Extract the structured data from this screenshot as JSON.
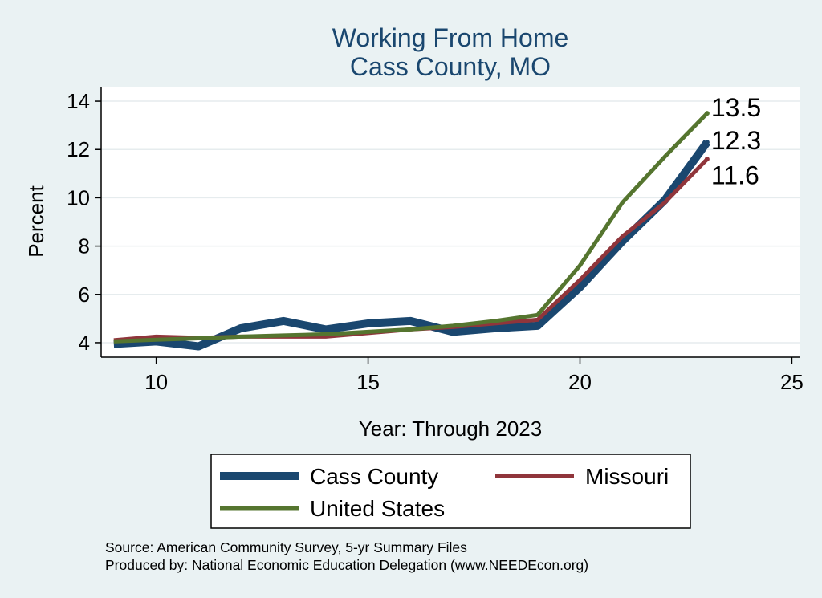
{
  "chart_data": {
    "type": "line",
    "title": "Working From Home",
    "subtitle": "Cass County, MO",
    "xlabel": "Year: Through 2023",
    "ylabel": "Percent",
    "xlim": [
      8.7,
      25.2
    ],
    "ylim": [
      3.4,
      14.6
    ],
    "xticks": [
      10,
      15,
      20,
      25
    ],
    "yticks": [
      4,
      6,
      8,
      10,
      12,
      14
    ],
    "grid": true,
    "x": [
      9,
      10,
      11,
      12,
      13,
      14,
      15,
      16,
      17,
      18,
      19,
      20,
      21,
      22,
      23
    ],
    "series": [
      {
        "name": "Cass County",
        "color": "#1a476f",
        "values": [
          3.95,
          4.05,
          3.85,
          4.6,
          4.9,
          4.55,
          4.8,
          4.9,
          4.45,
          4.6,
          4.7,
          6.3,
          8.2,
          9.9,
          12.3
        ],
        "end_label": "12.3"
      },
      {
        "name": "Missouri",
        "color": "#90353b",
        "values": [
          4.1,
          4.25,
          4.2,
          4.25,
          4.25,
          4.25,
          4.4,
          4.55,
          4.65,
          4.8,
          4.95,
          6.6,
          8.4,
          9.8,
          11.6
        ],
        "end_label": "11.6"
      },
      {
        "name": "United States",
        "color": "#55752f",
        "values": [
          4.05,
          4.12,
          4.18,
          4.25,
          4.3,
          4.35,
          4.45,
          4.55,
          4.7,
          4.9,
          5.15,
          7.2,
          9.8,
          11.7,
          13.5
        ],
        "end_label": "13.5"
      }
    ],
    "legend": {
      "position": "bottom",
      "items": [
        "Cass County",
        "Missouri",
        "United States"
      ]
    },
    "notes": [
      "Source: American Community Survey, 5-yr Summary Files",
      "Produced by: National Economic Education Delegation (www.NEEDEcon.org)"
    ]
  }
}
